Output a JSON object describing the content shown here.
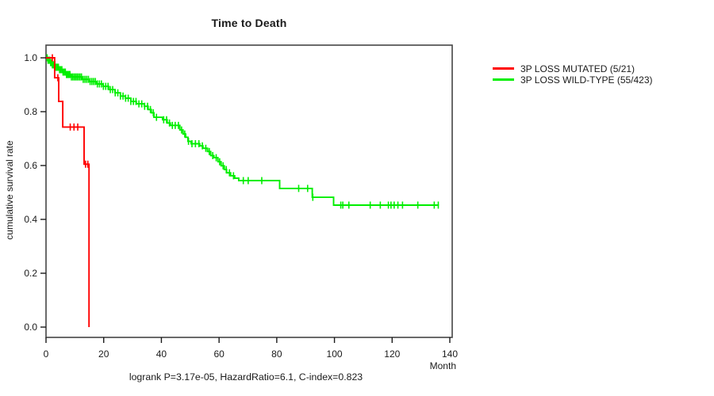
{
  "chart_data": {
    "type": "line",
    "subtype": "kaplan-meier-step",
    "title": "Time to Death",
    "xlabel": "Month",
    "ylabel": "cumulative survival rate",
    "annotation": "logrank P=3.17e-05, HazardRatio=6.1, C-index=0.823",
    "xlim": [
      0,
      140
    ],
    "ylim": [
      0.0,
      1.0
    ],
    "xticks": [
      0,
      20,
      40,
      60,
      80,
      100,
      120,
      140
    ],
    "yticks": [
      0.0,
      0.2,
      0.4,
      0.6,
      0.8,
      1.0
    ],
    "grid": false,
    "legend_position": "right-outside",
    "axis_color": "#454545",
    "series": [
      {
        "name": "3P LOSS WILD-TYPE (55/423)",
        "color": "#00ee00",
        "start_survival": 1.0,
        "end_month": 136.2,
        "steps": [
          [
            0.5,
            0.991
          ],
          [
            1.4,
            0.982
          ],
          [
            2.2,
            0.974
          ],
          [
            3.3,
            0.965
          ],
          [
            4.4,
            0.956
          ],
          [
            5.8,
            0.947
          ],
          [
            7.1,
            0.938
          ],
          [
            8.8,
            0.929
          ],
          [
            12.4,
            0.92
          ],
          [
            14.8,
            0.912
          ],
          [
            17.6,
            0.903
          ],
          [
            19.8,
            0.894
          ],
          [
            21.7,
            0.882
          ],
          [
            23.9,
            0.87
          ],
          [
            25.8,
            0.858
          ],
          [
            27.5,
            0.85
          ],
          [
            29.4,
            0.838
          ],
          [
            31.3,
            0.829
          ],
          [
            34.1,
            0.82
          ],
          [
            35.4,
            0.808
          ],
          [
            36.5,
            0.796
          ],
          [
            37.4,
            0.779
          ],
          [
            40.4,
            0.77
          ],
          [
            42.0,
            0.758
          ],
          [
            43.1,
            0.749
          ],
          [
            46.4,
            0.732
          ],
          [
            47.5,
            0.717
          ],
          [
            48.4,
            0.705
          ],
          [
            49.2,
            0.69
          ],
          [
            50.3,
            0.681
          ],
          [
            53.3,
            0.673
          ],
          [
            54.4,
            0.664
          ],
          [
            56.0,
            0.652
          ],
          [
            57.1,
            0.637
          ],
          [
            58.2,
            0.629
          ],
          [
            59.6,
            0.614
          ],
          [
            60.7,
            0.599
          ],
          [
            61.8,
            0.585
          ],
          [
            62.6,
            0.573
          ],
          [
            64.0,
            0.562
          ],
          [
            65.4,
            0.553
          ],
          [
            66.8,
            0.544
          ],
          [
            81.0,
            0.515
          ],
          [
            92.3,
            0.482
          ],
          [
            99.7,
            0.453
          ]
        ],
        "censor_months": [
          0.4,
          0.7,
          1.0,
          1.3,
          1.6,
          1.9,
          2.2,
          2.5,
          2.8,
          3.1,
          3.4,
          3.7,
          4.0,
          4.3,
          4.7,
          5.1,
          5.5,
          5.9,
          6.3,
          6.7,
          7.1,
          7.5,
          7.9,
          8.3,
          8.8,
          9.3,
          9.8,
          10.3,
          10.8,
          11.3,
          11.8,
          12.3,
          12.9,
          13.5,
          14.1,
          14.7,
          15.3,
          15.9,
          16.5,
          17.1,
          17.8,
          18.5,
          19.2,
          19.9,
          20.7,
          21.5,
          22.3,
          23.1,
          24.0,
          24.9,
          25.8,
          26.7,
          27.6,
          28.5,
          29.4,
          30.3,
          31.2,
          32.2,
          33.2,
          34.2,
          35.2,
          36.2,
          37.2,
          38.3,
          40.8,
          41.8,
          42.8,
          43.8,
          44.8,
          45.9,
          47.0,
          48.1,
          49.4,
          50.6,
          51.8,
          53.0,
          54.2,
          55.4,
          56.6,
          57.8,
          59.0,
          60.2,
          61.4,
          62.5,
          63.6,
          65.0,
          68.4,
          70.1,
          74.8,
          87.6,
          90.7,
          92.5,
          102.2,
          102.9,
          105.0,
          112.4,
          115.9,
          118.7,
          119.6,
          120.7,
          122.0,
          123.6,
          128.9,
          134.6,
          136.0
        ]
      },
      {
        "name": "3P LOSS MUTATED (5/21)",
        "color": "#ff0000",
        "start_survival": 1.0,
        "end_month": 14.9,
        "steps": [
          [
            3.0,
            0.926
          ],
          [
            4.4,
            0.838
          ],
          [
            5.8,
            0.743
          ],
          [
            13.2,
            0.605
          ],
          [
            14.9,
            0.0
          ]
        ],
        "censor_months": [
          2.2,
          4.1,
          8.4,
          9.7,
          11.0,
          13.7,
          14.5
        ]
      }
    ]
  },
  "legend": {
    "entries": [
      {
        "label": "3P LOSS MUTATED (5/21)",
        "color": "#ff0000"
      },
      {
        "label": "3P LOSS WILD-TYPE (55/423)",
        "color": "#00ee00"
      }
    ]
  }
}
